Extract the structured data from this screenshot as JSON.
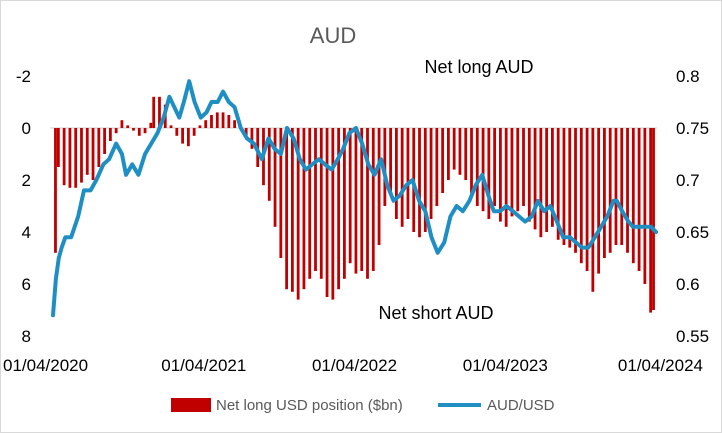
{
  "chart_data": {
    "type": "bar+line",
    "title": "AUD",
    "x_ticks": [
      "01/04/2020",
      "01/04/2021",
      "01/04/2022",
      "01/04/2023",
      "01/04/2024"
    ],
    "x_range": [
      "2020-04-01",
      "2024-04-01"
    ],
    "y_left": {
      "ticks": [
        "-2",
        "0",
        "2",
        "4",
        "6",
        "8"
      ],
      "range": [
        -2,
        8
      ],
      "inverted": true
    },
    "y_right": {
      "ticks": [
        "0.8",
        "0.75",
        "0.7",
        "0.65",
        "0.6",
        "0.55"
      ],
      "range": [
        0.55,
        0.8
      ]
    },
    "annotations": [
      "Net long AUD",
      "Net short AUD"
    ],
    "legend_position": "bottom",
    "colors": {
      "bars": "#c00000",
      "line": "#1f8fc3"
    },
    "series": [
      {
        "name": "Net long USD position ($bn)",
        "kind": "bar",
        "axis": "left",
        "points": [
          [
            "2020-04-07",
            4.8
          ],
          [
            "2020-04-14",
            1.5
          ],
          [
            "2020-04-28",
            2.2
          ],
          [
            "2020-05-12",
            2.3
          ],
          [
            "2020-05-26",
            2.3
          ],
          [
            "2020-06-09",
            2.1
          ],
          [
            "2020-06-23",
            1.8
          ],
          [
            "2020-07-07",
            2.0
          ],
          [
            "2020-07-21",
            1.5
          ],
          [
            "2020-08-04",
            1.0
          ],
          [
            "2020-08-18",
            0.5
          ],
          [
            "2020-09-01",
            0.2
          ],
          [
            "2020-09-15",
            -0.3
          ],
          [
            "2020-09-29",
            -0.1
          ],
          [
            "2020-10-13",
            0.1
          ],
          [
            "2020-10-27",
            0.3
          ],
          [
            "2020-11-10",
            0.2
          ],
          [
            "2020-11-24",
            -0.2
          ],
          [
            "2020-12-01",
            -1.2
          ],
          [
            "2020-12-15",
            -1.2
          ],
          [
            "2020-12-29",
            -0.9
          ],
          [
            "2021-01-12",
            -0.1
          ],
          [
            "2021-01-26",
            0.3
          ],
          [
            "2021-02-09",
            0.6
          ],
          [
            "2021-02-23",
            0.7
          ],
          [
            "2021-03-09",
            0.3
          ],
          [
            "2021-03-23",
            -0.1
          ],
          [
            "2021-04-06",
            -0.3
          ],
          [
            "2021-04-20",
            -0.5
          ],
          [
            "2021-05-04",
            -0.6
          ],
          [
            "2021-05-18",
            -0.6
          ],
          [
            "2021-06-01",
            -0.5
          ],
          [
            "2021-06-15",
            -0.3
          ],
          [
            "2021-06-29",
            -0.1
          ],
          [
            "2021-07-13",
            0.3
          ],
          [
            "2021-07-27",
            0.8
          ],
          [
            "2021-08-10",
            1.5
          ],
          [
            "2021-08-24",
            2.2
          ],
          [
            "2021-09-07",
            2.8
          ],
          [
            "2021-09-21",
            3.8
          ],
          [
            "2021-10-05",
            5.0
          ],
          [
            "2021-10-19",
            6.2
          ],
          [
            "2021-11-02",
            6.3
          ],
          [
            "2021-11-16",
            6.6
          ],
          [
            "2021-11-30",
            6.2
          ],
          [
            "2021-12-14",
            5.8
          ],
          [
            "2021-12-28",
            5.5
          ],
          [
            "2022-01-11",
            5.8
          ],
          [
            "2022-01-25",
            6.5
          ],
          [
            "2022-02-08",
            6.6
          ],
          [
            "2022-02-22",
            6.2
          ],
          [
            "2022-03-08",
            5.8
          ],
          [
            "2022-03-22",
            5.2
          ],
          [
            "2022-04-05",
            5.6
          ],
          [
            "2022-04-19",
            5.5
          ],
          [
            "2022-05-03",
            5.8
          ],
          [
            "2022-05-17",
            5.5
          ],
          [
            "2022-05-31",
            4.5
          ],
          [
            "2022-06-14",
            3.0
          ],
          [
            "2022-06-28",
            2.5
          ],
          [
            "2022-07-12",
            3.5
          ],
          [
            "2022-07-26",
            3.8
          ],
          [
            "2022-08-09",
            3.5
          ],
          [
            "2022-08-23",
            4.0
          ],
          [
            "2022-09-06",
            4.2
          ],
          [
            "2022-09-20",
            4.0
          ],
          [
            "2022-10-04",
            3.5
          ],
          [
            "2022-10-18",
            3.0
          ],
          [
            "2022-11-01",
            2.5
          ],
          [
            "2022-11-15",
            2.0
          ],
          [
            "2022-11-29",
            1.6
          ],
          [
            "2022-12-13",
            1.8
          ],
          [
            "2022-12-27",
            2.0
          ],
          [
            "2023-01-10",
            2.5
          ],
          [
            "2023-01-24",
            3.0
          ],
          [
            "2023-02-07",
            3.2
          ],
          [
            "2023-02-21",
            3.5
          ],
          [
            "2023-03-07",
            3.0
          ],
          [
            "2023-03-21",
            3.6
          ],
          [
            "2023-04-04",
            3.8
          ],
          [
            "2023-04-18",
            3.4
          ],
          [
            "2023-05-02",
            3.2
          ],
          [
            "2023-05-16",
            3.0
          ],
          [
            "2023-05-30",
            3.6
          ],
          [
            "2023-06-13",
            3.9
          ],
          [
            "2023-06-27",
            4.2
          ],
          [
            "2023-07-11",
            4.0
          ],
          [
            "2023-07-25",
            3.8
          ],
          [
            "2023-08-08",
            4.3
          ],
          [
            "2023-08-22",
            4.5
          ],
          [
            "2023-09-05",
            4.6
          ],
          [
            "2023-09-19",
            4.8
          ],
          [
            "2023-10-03",
            5.2
          ],
          [
            "2023-10-17",
            5.5
          ],
          [
            "2023-10-31",
            6.3
          ],
          [
            "2023-11-14",
            5.6
          ],
          [
            "2023-11-28",
            5.0
          ],
          [
            "2023-12-12",
            4.8
          ],
          [
            "2023-12-26",
            4.5
          ],
          [
            "2024-01-09",
            4.5
          ],
          [
            "2024-01-23",
            4.8
          ],
          [
            "2024-02-06",
            5.2
          ],
          [
            "2024-02-20",
            5.5
          ],
          [
            "2024-03-05",
            6.0
          ],
          [
            "2024-03-19",
            7.1
          ],
          [
            "2024-03-26",
            7.0
          ]
        ]
      },
      {
        "name": "AUD/USD",
        "kind": "line",
        "axis": "right",
        "points": [
          [
            "2020-04-01",
            0.57
          ],
          [
            "2020-04-08",
            0.605
          ],
          [
            "2020-04-15",
            0.625
          ],
          [
            "2020-04-22",
            0.635
          ],
          [
            "2020-05-01",
            0.645
          ],
          [
            "2020-05-15",
            0.645
          ],
          [
            "2020-06-01",
            0.665
          ],
          [
            "2020-06-15",
            0.69
          ],
          [
            "2020-07-01",
            0.69
          ],
          [
            "2020-07-15",
            0.7
          ],
          [
            "2020-08-01",
            0.715
          ],
          [
            "2020-08-15",
            0.72
          ],
          [
            "2020-09-01",
            0.735
          ],
          [
            "2020-09-15",
            0.725
          ],
          [
            "2020-09-25",
            0.705
          ],
          [
            "2020-10-10",
            0.715
          ],
          [
            "2020-10-25",
            0.705
          ],
          [
            "2020-11-10",
            0.725
          ],
          [
            "2020-11-25",
            0.735
          ],
          [
            "2020-12-10",
            0.745
          ],
          [
            "2020-12-25",
            0.76
          ],
          [
            "2021-01-08",
            0.78
          ],
          [
            "2021-01-20",
            0.77
          ],
          [
            "2021-02-01",
            0.76
          ],
          [
            "2021-02-12",
            0.775
          ],
          [
            "2021-02-25",
            0.795
          ],
          [
            "2021-03-10",
            0.775
          ],
          [
            "2021-03-25",
            0.76
          ],
          [
            "2021-04-08",
            0.765
          ],
          [
            "2021-04-20",
            0.775
          ],
          [
            "2021-05-05",
            0.775
          ],
          [
            "2021-05-18",
            0.785
          ],
          [
            "2021-06-01",
            0.775
          ],
          [
            "2021-06-15",
            0.77
          ],
          [
            "2021-06-30",
            0.75
          ],
          [
            "2021-07-15",
            0.74
          ],
          [
            "2021-08-01",
            0.735
          ],
          [
            "2021-08-20",
            0.72
          ],
          [
            "2021-09-05",
            0.74
          ],
          [
            "2021-09-20",
            0.73
          ],
          [
            "2021-10-05",
            0.725
          ],
          [
            "2021-10-20",
            0.75
          ],
          [
            "2021-11-05",
            0.74
          ],
          [
            "2021-11-20",
            0.72
          ],
          [
            "2021-12-05",
            0.71
          ],
          [
            "2021-12-20",
            0.715
          ],
          [
            "2022-01-05",
            0.72
          ],
          [
            "2022-01-20",
            0.715
          ],
          [
            "2022-02-05",
            0.71
          ],
          [
            "2022-02-20",
            0.72
          ],
          [
            "2022-03-05",
            0.73
          ],
          [
            "2022-03-20",
            0.745
          ],
          [
            "2022-04-05",
            0.75
          ],
          [
            "2022-04-20",
            0.735
          ],
          [
            "2022-05-05",
            0.715
          ],
          [
            "2022-05-20",
            0.705
          ],
          [
            "2022-06-05",
            0.72
          ],
          [
            "2022-06-20",
            0.695
          ],
          [
            "2022-07-05",
            0.68
          ],
          [
            "2022-07-20",
            0.685
          ],
          [
            "2022-08-05",
            0.695
          ],
          [
            "2022-08-20",
            0.7
          ],
          [
            "2022-09-05",
            0.68
          ],
          [
            "2022-09-20",
            0.67
          ],
          [
            "2022-10-05",
            0.645
          ],
          [
            "2022-10-20",
            0.63
          ],
          [
            "2022-11-05",
            0.64
          ],
          [
            "2022-11-20",
            0.665
          ],
          [
            "2022-12-05",
            0.675
          ],
          [
            "2022-12-20",
            0.67
          ],
          [
            "2023-01-05",
            0.68
          ],
          [
            "2023-01-20",
            0.695
          ],
          [
            "2023-02-05",
            0.705
          ],
          [
            "2023-02-20",
            0.685
          ],
          [
            "2023-03-05",
            0.67
          ],
          [
            "2023-03-20",
            0.67
          ],
          [
            "2023-04-05",
            0.675
          ],
          [
            "2023-04-20",
            0.67
          ],
          [
            "2023-05-05",
            0.665
          ],
          [
            "2023-05-20",
            0.66
          ],
          [
            "2023-06-05",
            0.665
          ],
          [
            "2023-06-20",
            0.68
          ],
          [
            "2023-07-05",
            0.67
          ],
          [
            "2023-07-20",
            0.675
          ],
          [
            "2023-08-05",
            0.66
          ],
          [
            "2023-08-20",
            0.645
          ],
          [
            "2023-09-05",
            0.645
          ],
          [
            "2023-09-20",
            0.64
          ],
          [
            "2023-10-05",
            0.635
          ],
          [
            "2023-10-20",
            0.635
          ],
          [
            "2023-11-05",
            0.645
          ],
          [
            "2023-11-20",
            0.655
          ],
          [
            "2023-12-05",
            0.665
          ],
          [
            "2023-12-20",
            0.68
          ],
          [
            "2023-12-28",
            0.68
          ],
          [
            "2024-01-10",
            0.67
          ],
          [
            "2024-01-25",
            0.66
          ],
          [
            "2024-02-05",
            0.655
          ],
          [
            "2024-02-20",
            0.655
          ],
          [
            "2024-03-05",
            0.655
          ],
          [
            "2024-03-20",
            0.655
          ],
          [
            "2024-04-01",
            0.65
          ]
        ]
      }
    ]
  }
}
